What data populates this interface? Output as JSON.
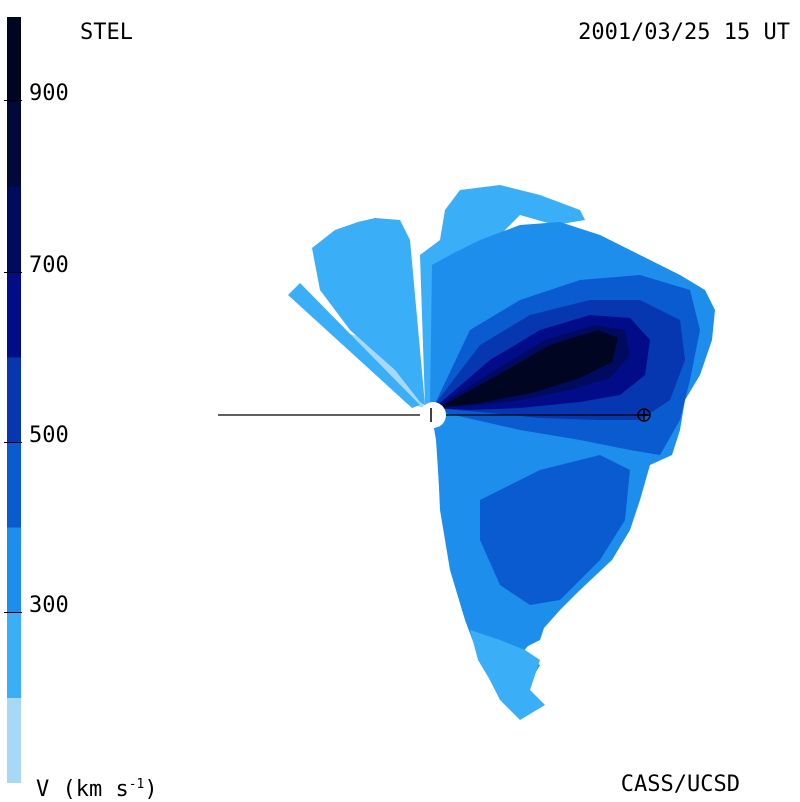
{
  "header": {
    "label_left": "STEL",
    "timestamp": "2001/03/25 15 UT"
  },
  "footer": {
    "label_right": "CASS/UCSD",
    "units_prefix": "V (km s",
    "units_exp": "-1",
    "units_suffix": ")"
  },
  "colorbar": {
    "ticks": [
      "900",
      "700",
      "500",
      "300"
    ],
    "colors": [
      "#a8d8f8",
      "#3aaef6",
      "#1e8eec",
      "#0a5bd0",
      "#0636b0",
      "#020c88",
      "#000a5e",
      "#000a3a",
      "#000521"
    ]
  },
  "plot": {
    "palette": {
      "v1": "#a8d8f8",
      "v2": "#3aaef6",
      "v3": "#1e8eec",
      "v4": "#0a5bd0",
      "v5": "#0636b0",
      "v6": "#020c88",
      "v7": "#000a5e",
      "v8": "#000521",
      "line": "#000000"
    }
  }
}
